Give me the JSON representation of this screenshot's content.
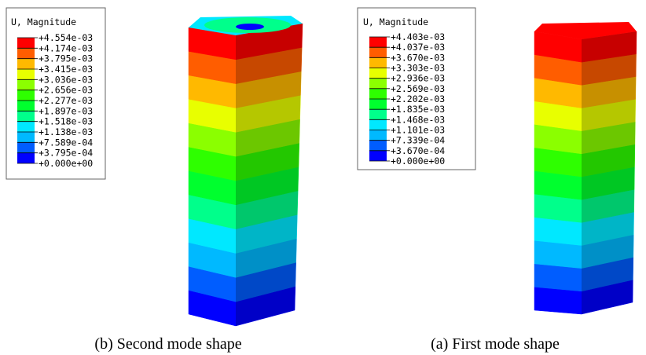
{
  "panels": [
    {
      "legend": {
        "title": "U, Magnitude",
        "labels": [
          "+4.554e-03",
          "+4.174e-03",
          "+3.795e-03",
          "+3.415e-03",
          "+3.036e-03",
          "+2.656e-03",
          "+2.277e-03",
          "+1.897e-03",
          "+1.518e-03",
          "+1.138e-03",
          "+7.589e-04",
          "+3.795e-04",
          "+0.000e+00"
        ],
        "colors": [
          "#ff0000",
          "#ff5d00",
          "#ffb900",
          "#e8ff00",
          "#8bff00",
          "#2eff00",
          "#00ff2e",
          "#00ff8b",
          "#00e8ff",
          "#00b9ff",
          "#005dff",
          "#0000ff"
        ]
      },
      "caption": "(b) Second mode shape"
    },
    {
      "legend": {
        "title": "U, Magnitude",
        "labels": [
          "+4.403e-03",
          "+4.037e-03",
          "+3.670e-03",
          "+3.303e-03",
          "+2.936e-03",
          "+2.569e-03",
          "+2.202e-03",
          "+1.835e-03",
          "+1.468e-03",
          "+1.101e-03",
          "+7.339e-04",
          "+3.670e-04",
          "+0.000e+00"
        ],
        "colors": [
          "#ff0000",
          "#ff5d00",
          "#ffb900",
          "#e8ff00",
          "#8bff00",
          "#2eff00",
          "#00ff2e",
          "#00ff8b",
          "#00e8ff",
          "#00b9ff",
          "#005dff",
          "#0000ff"
        ]
      },
      "caption": "(a) First mode shape"
    }
  ]
}
